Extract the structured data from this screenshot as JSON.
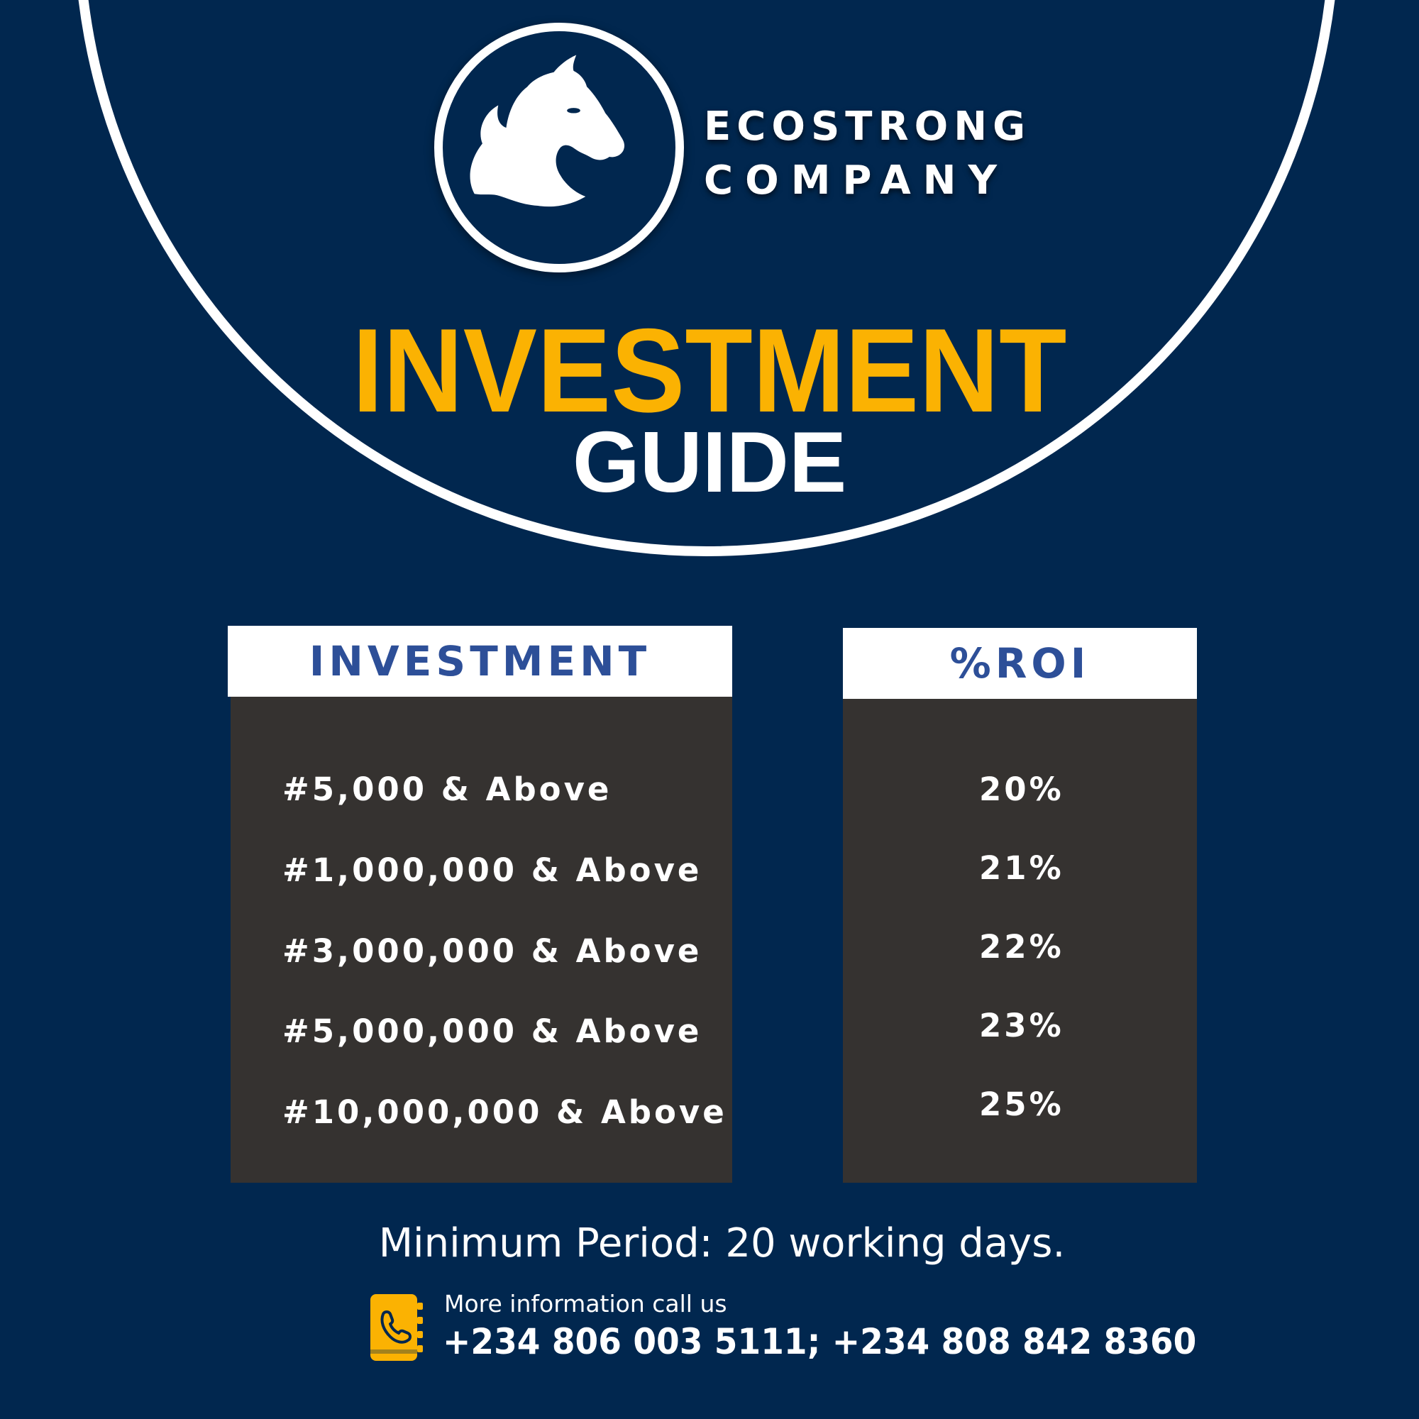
{
  "brand": {
    "line1": "ECOSTRONG",
    "line2": "COMPANY",
    "logo_icon": "horse-head-icon"
  },
  "headline": {
    "line1": "INVESTMENT",
    "line2": "GUIDE"
  },
  "table": {
    "investment_header": "INVESTMENT",
    "roi_header": "%ROI",
    "rows": [
      {
        "investment": "#5,000 & Above",
        "roi": "20%"
      },
      {
        "investment": "#1,000,000 & Above",
        "roi": "21%"
      },
      {
        "investment": "#3,000,000 & Above",
        "roi": "22%"
      },
      {
        "investment": "#5,000,000 & Above",
        "roi": "23%"
      },
      {
        "investment": "#10,000,000 & Above",
        "roi": "25%"
      }
    ]
  },
  "minimum_period": "Minimum Period: 20 working days.",
  "contact": {
    "label": "More information call us",
    "numbers": "+234 806 003 5111; +234 808 842 8360",
    "icon": "phone-book-icon"
  },
  "colors": {
    "background": "#01274f",
    "accent": "#fbb202",
    "table_body": "#353230",
    "header_text": "#2d4f98"
  }
}
